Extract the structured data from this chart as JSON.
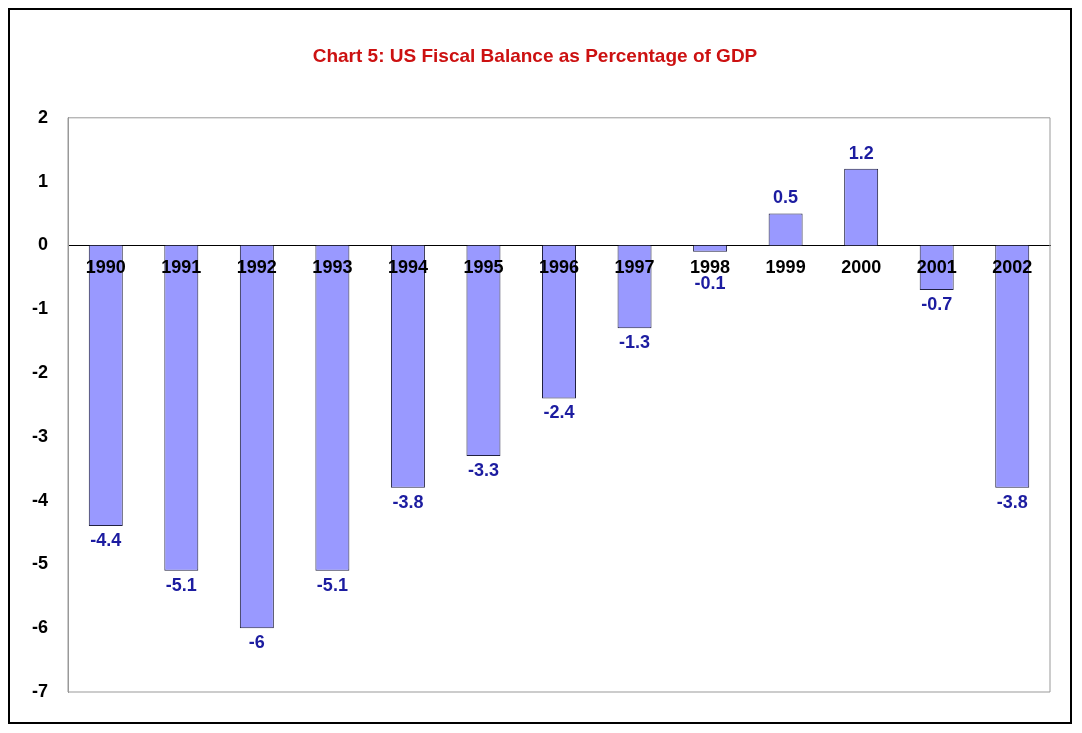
{
  "chart_data": {
    "type": "bar",
    "title": "Chart 5: US Fiscal Balance as Percentage of GDP",
    "categories": [
      "1990",
      "1991",
      "1992",
      "1993",
      "1994",
      "1995",
      "1996",
      "1997",
      "1998",
      "1999",
      "2000",
      "2001",
      "2002"
    ],
    "values": [
      -4.4,
      -5.1,
      -6,
      -5.1,
      -3.8,
      -3.3,
      -2.4,
      -1.3,
      -0.1,
      0.5,
      1.2,
      -0.7,
      -3.8
    ],
    "color": "#9999ff",
    "ylim": [
      -7,
      2
    ],
    "yticks": [
      -7,
      -6,
      -5,
      -4,
      -3,
      -2,
      -1,
      0,
      1,
      2
    ],
    "data_labels": true,
    "grid": false,
    "legend": false
  }
}
